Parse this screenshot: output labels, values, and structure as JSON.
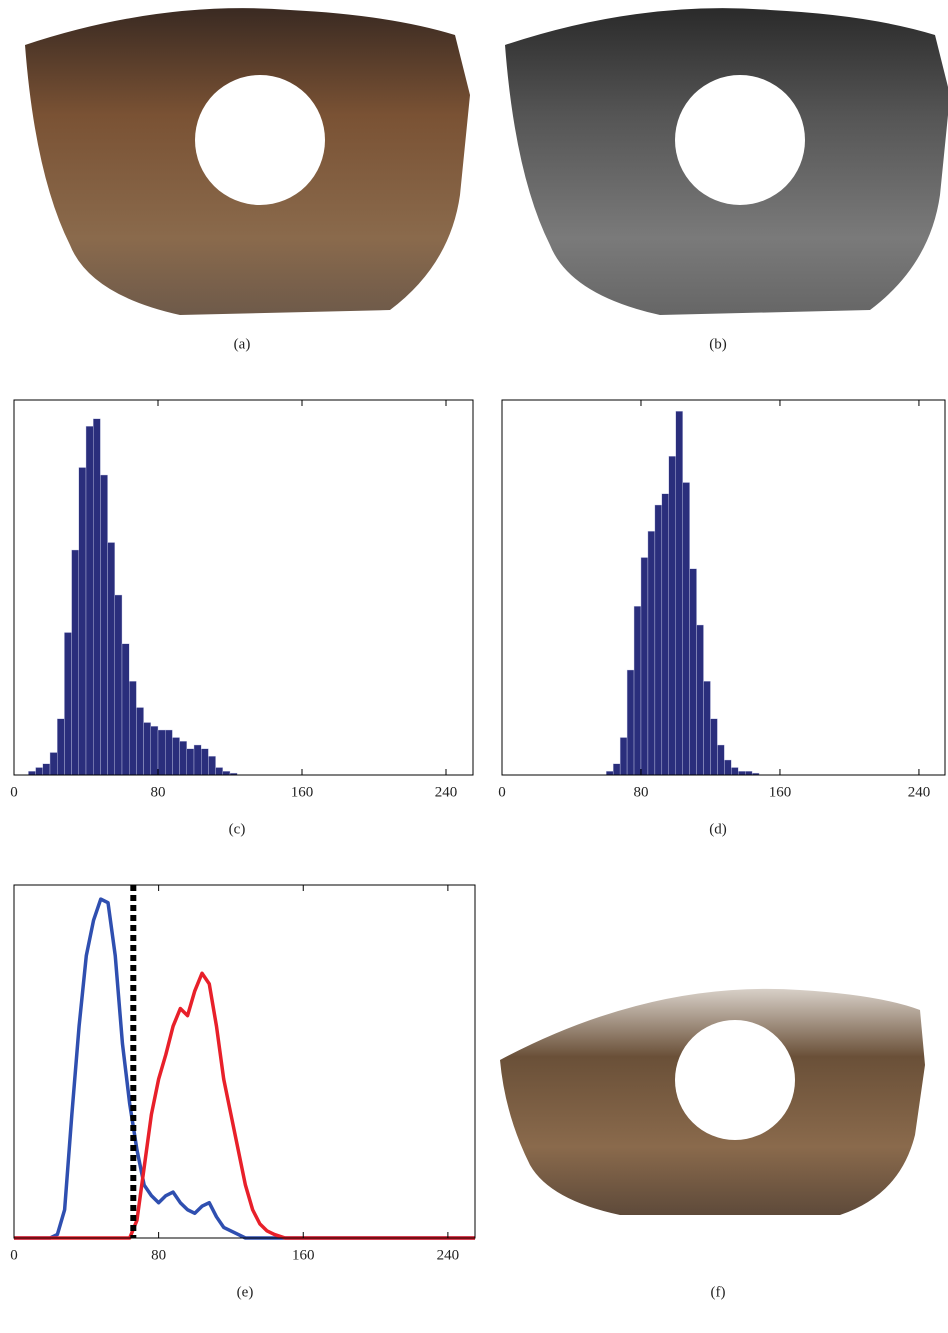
{
  "images": [
    {
      "caption": "(a)"
    },
    {
      "caption": "(b)"
    },
    {
      "caption": "(f)"
    }
  ],
  "chart_data": [
    {
      "type": "histogram",
      "caption": "(c)",
      "color": "#2a2e7c",
      "bins": [
        8,
        12,
        16,
        20,
        24,
        28,
        32,
        36,
        40,
        44,
        48,
        52,
        56,
        60,
        64,
        68,
        72,
        76,
        80,
        84,
        88,
        92,
        96,
        100,
        104,
        108,
        112,
        116,
        120,
        124
      ],
      "values": [
        1,
        2,
        3,
        6,
        15,
        38,
        60,
        82,
        93,
        95,
        80,
        62,
        48,
        35,
        25,
        18,
        14,
        13,
        12,
        12,
        10,
        9,
        7,
        8,
        7,
        5,
        2,
        1,
        0.5
      ],
      "xlim": [
        0,
        255
      ],
      "ylim": [
        0,
        100
      ],
      "xticks": [
        0,
        80,
        160,
        240
      ]
    },
    {
      "type": "histogram",
      "caption": "(d)",
      "color": "#2a2e7c",
      "bins": [
        60,
        64,
        68,
        72,
        76,
        80,
        84,
        88,
        92,
        96,
        100,
        104,
        108,
        112,
        116,
        120,
        124,
        128,
        132,
        136,
        140,
        144,
        148
      ],
      "values": [
        1,
        3,
        10,
        28,
        45,
        58,
        65,
        72,
        75,
        85,
        97,
        78,
        55,
        40,
        25,
        15,
        8,
        4,
        2,
        1,
        1,
        0.5
      ],
      "xlim": [
        0,
        255
      ],
      "ylim": [
        0,
        100
      ],
      "xticks": [
        0,
        80,
        160,
        240
      ]
    },
    {
      "type": "line",
      "caption": "(e)",
      "x": [
        0,
        10,
        20,
        24,
        28,
        32,
        36,
        40,
        44,
        48,
        52,
        56,
        60,
        64,
        68,
        72,
        76,
        80,
        84,
        88,
        92,
        96,
        100,
        104,
        108,
        112,
        116,
        120,
        124,
        128,
        132,
        136,
        140,
        144,
        150,
        160,
        200,
        255
      ],
      "series": [
        {
          "color": "#2f4fb0",
          "values": [
            0,
            0,
            0,
            1,
            8,
            35,
            60,
            80,
            90,
            96,
            95,
            80,
            55,
            38,
            25,
            15,
            12,
            10,
            12,
            13,
            10,
            8,
            7,
            9,
            10,
            6,
            3,
            2,
            1,
            0,
            0,
            0,
            0,
            0,
            0,
            0,
            0,
            0
          ]
        },
        {
          "color": "#e8202a",
          "values": [
            0,
            0,
            0,
            0,
            0,
            0,
            0,
            0,
            0,
            0,
            0,
            0,
            0,
            0,
            5,
            20,
            35,
            45,
            52,
            60,
            65,
            63,
            70,
            75,
            72,
            60,
            45,
            35,
            25,
            15,
            8,
            4,
            2,
            1,
            0,
            0,
            0,
            0
          ]
        }
      ],
      "threshold": 66,
      "xlim": [
        0,
        255
      ],
      "ylim": [
        0,
        100
      ],
      "xticks": [
        0,
        80,
        160,
        240
      ]
    }
  ]
}
